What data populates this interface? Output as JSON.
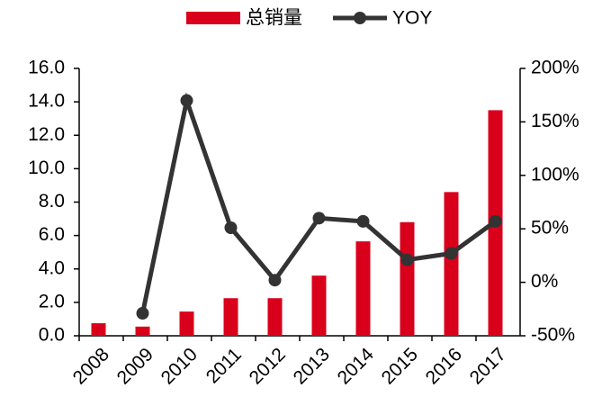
{
  "chart_data": {
    "type": "bar-line",
    "categories": [
      "2008",
      "2009",
      "2010",
      "2011",
      "2012",
      "2013",
      "2014",
      "2015",
      "2016",
      "2017"
    ],
    "series": [
      {
        "name": "总销量",
        "type": "bar",
        "color": "#d9001b",
        "values": [
          0.75,
          0.55,
          1.45,
          2.25,
          2.25,
          3.6,
          5.65,
          6.8,
          8.6,
          13.5
        ]
      },
      {
        "name": "YOY",
        "type": "line",
        "axis": "y2",
        "color": "#333333",
        "values": [
          null,
          -29,
          170,
          51,
          2,
          60,
          57,
          21,
          27,
          57
        ]
      }
    ],
    "ylim": [
      0,
      16
    ],
    "yticks": [
      {
        "value": 0,
        "label": "0.0"
      },
      {
        "value": 2,
        "label": "2.0"
      },
      {
        "value": 4,
        "label": "4.0"
      },
      {
        "value": 6,
        "label": "6.0"
      },
      {
        "value": 8,
        "label": "8.0"
      },
      {
        "value": 10,
        "label": "10.0"
      },
      {
        "value": 12,
        "label": "12.0"
      },
      {
        "value": 14,
        "label": "14.0"
      },
      {
        "value": 16,
        "label": "16.0"
      }
    ],
    "y2lim": [
      -50,
      200
    ],
    "y2ticks": [
      {
        "value": -50,
        "label": "-50%"
      },
      {
        "value": 0,
        "label": "0%"
      },
      {
        "value": 50,
        "label": "50%"
      },
      {
        "value": 100,
        "label": "100%"
      },
      {
        "value": 150,
        "label": "150%"
      },
      {
        "value": 200,
        "label": "200%"
      }
    ],
    "legend": "top"
  }
}
